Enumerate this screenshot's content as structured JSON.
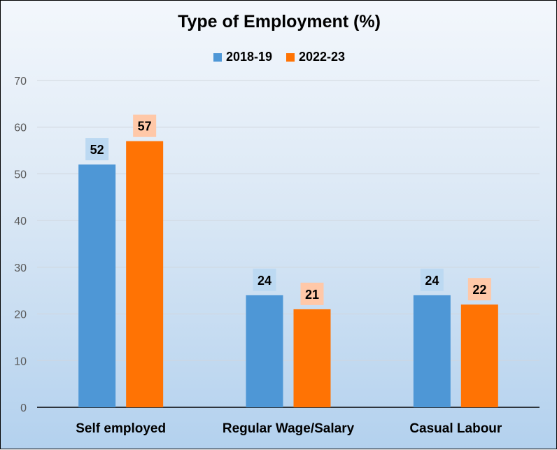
{
  "chart_data": {
    "type": "bar",
    "title": "Type of Employment (%)",
    "categories": [
      "Self employed",
      "Regular Wage/Salary",
      "Casual Labour"
    ],
    "series": [
      {
        "name": "2018-19",
        "values": [
          52,
          24,
          24
        ],
        "color": "#4e97d6",
        "label_bg": "#bcd9f2"
      },
      {
        "name": "2022-23",
        "values": [
          57,
          21,
          22
        ],
        "color": "#ff7304",
        "label_bg": "#ffc8a8"
      }
    ],
    "ylim": [
      0,
      70
    ],
    "yticks": [
      0,
      10,
      20,
      30,
      40,
      50,
      60,
      70
    ],
    "grid": true,
    "legend": "top",
    "xlabel": "",
    "ylabel": ""
  }
}
